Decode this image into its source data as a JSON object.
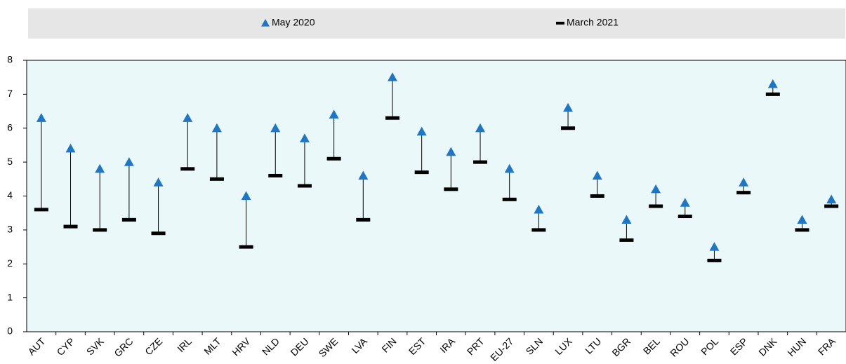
{
  "chart_data": {
    "type": "dumbbell",
    "categories": [
      "AUT",
      "CYP",
      "SVK",
      "GRC",
      "CZE",
      "IRL",
      "MLT",
      "HRV",
      "NLD",
      "DEU",
      "SWE",
      "LVA",
      "FIN",
      "EST",
      "IRA",
      "PRT",
      "EU-27",
      "SLN",
      "LUX",
      "LTU",
      "BGR",
      "BEL",
      "ROU",
      "POL",
      "ESP",
      "DNK",
      "HUN",
      "FRA"
    ],
    "series": [
      {
        "name": "May 2020",
        "color": "#1f77c4",
        "marker": "triangle",
        "values": [
          6.3,
          5.4,
          4.8,
          5.0,
          4.4,
          6.3,
          6.0,
          4.0,
          6.0,
          5.7,
          6.4,
          4.6,
          7.5,
          5.9,
          5.3,
          6.0,
          4.8,
          3.6,
          6.6,
          4.6,
          3.3,
          4.2,
          3.8,
          2.5,
          4.4,
          7.3,
          3.3,
          3.9
        ]
      },
      {
        "name": "March 2021",
        "color": "#000000",
        "marker": "dash",
        "values": [
          3.6,
          3.1,
          3.0,
          3.3,
          2.9,
          4.8,
          4.5,
          2.5,
          4.6,
          4.3,
          5.1,
          3.3,
          6.3,
          4.7,
          4.2,
          5.0,
          3.9,
          3.0,
          6.0,
          4.0,
          2.7,
          3.7,
          3.4,
          2.1,
          4.1,
          7.0,
          3.0,
          3.7
        ]
      }
    ],
    "ylim": [
      0,
      8
    ],
    "yticks": [
      0,
      1,
      2,
      3,
      4,
      5,
      6,
      7,
      8
    ]
  }
}
